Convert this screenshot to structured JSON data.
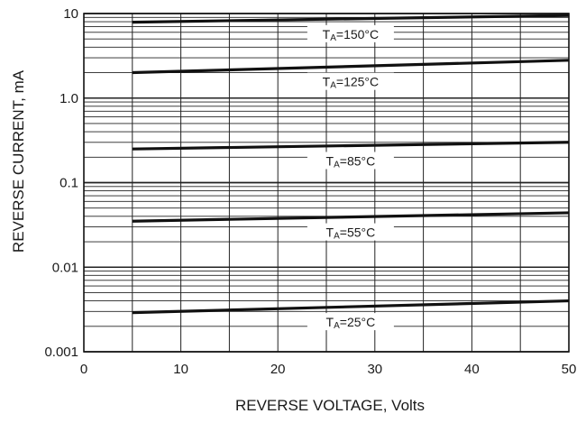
{
  "chart_data": {
    "type": "line",
    "title": "",
    "xlabel": "REVERSE VOLTAGE, Volts",
    "ylabel": "REVERSE CURRENT, mA",
    "xlim": [
      0,
      50
    ],
    "ylim": [
      0.001,
      10
    ],
    "y_scale": "log",
    "grid": true,
    "x_ticks": [
      0,
      10,
      20,
      30,
      40,
      50
    ],
    "x_tick_labels": [
      "0",
      "10",
      "20",
      "30",
      "40",
      "50"
    ],
    "y_ticks": [
      0.001,
      0.01,
      0.1,
      1,
      10
    ],
    "y_tick_labels": [
      "0.001",
      "0.01",
      "0.1",
      "1.0",
      "10"
    ],
    "series": [
      {
        "name": "TA=150°C",
        "label_main": "T",
        "label_sub": "A",
        "label_rest": "=150°C",
        "x": [
          5,
          50
        ],
        "y": [
          7.9,
          9.5
        ],
        "label_x": 27.5
      },
      {
        "name": "TA=125°C",
        "label_main": "T",
        "label_sub": "A",
        "label_rest": "=125°C",
        "x": [
          5,
          50
        ],
        "y": [
          2.0,
          2.8
        ],
        "label_x": 27.5
      },
      {
        "name": "TA=85°C",
        "label_main": "T",
        "label_sub": "A",
        "label_rest": "=85°C",
        "x": [
          5,
          50
        ],
        "y": [
          0.25,
          0.3
        ],
        "label_x": 27.5
      },
      {
        "name": "TA=55°C",
        "label_main": "T",
        "label_sub": "A",
        "label_rest": "=55°C",
        "x": [
          5,
          50
        ],
        "y": [
          0.035,
          0.044
        ],
        "label_x": 27.5
      },
      {
        "name": "TA=25°C",
        "label_main": "T",
        "label_sub": "A",
        "label_rest": "=25°C",
        "x": [
          5,
          50
        ],
        "y": [
          0.0029,
          0.004
        ],
        "label_x": 27.5
      }
    ]
  }
}
